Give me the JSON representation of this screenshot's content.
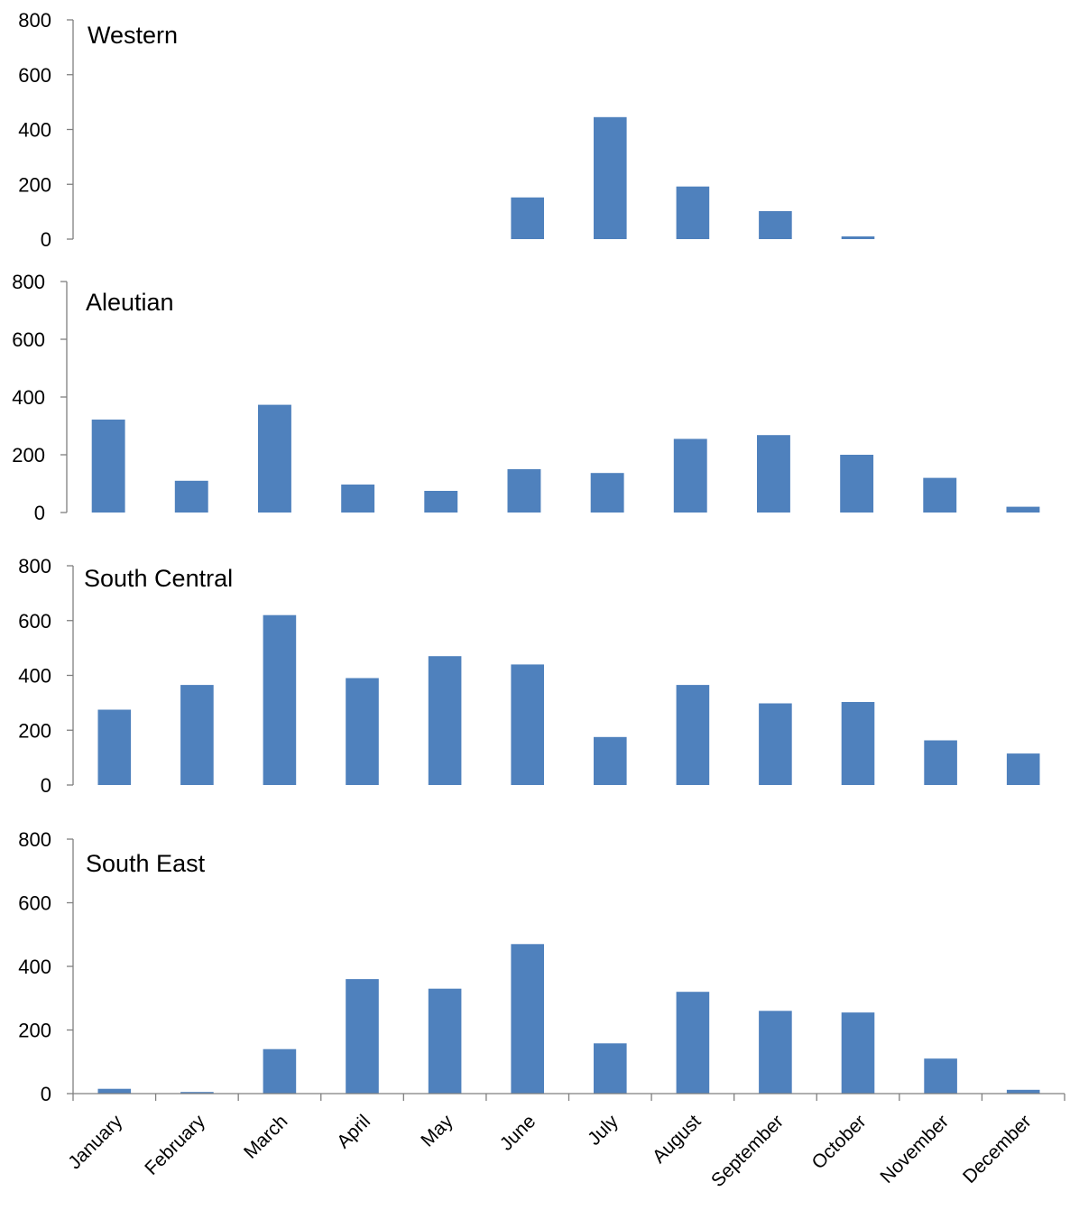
{
  "chart_data": {
    "type": "bar",
    "layout": "small-multiples-vertical",
    "shared_x_axis": true,
    "grid": false,
    "legend": "none",
    "bar_color": "#4f81bd",
    "categories": [
      "January",
      "February",
      "March",
      "April",
      "May",
      "June",
      "July",
      "August",
      "September",
      "October",
      "November",
      "December"
    ],
    "ylim": [
      0,
      800
    ],
    "yticks": [
      0,
      200,
      400,
      600,
      800
    ],
    "panels": [
      {
        "title": "Western",
        "values": [
          0,
          0,
          0,
          0,
          0,
          152,
          445,
          192,
          102,
          10,
          0,
          0
        ]
      },
      {
        "title": "Aleutian",
        "values": [
          322,
          110,
          373,
          97,
          75,
          150,
          137,
          255,
          268,
          200,
          120,
          20
        ]
      },
      {
        "title": "South Central",
        "values": [
          275,
          365,
          620,
          390,
          470,
          440,
          175,
          365,
          298,
          303,
          163,
          115
        ]
      },
      {
        "title": "South East",
        "values": [
          15,
          5,
          140,
          360,
          330,
          470,
          158,
          320,
          260,
          255,
          110,
          12
        ]
      }
    ]
  }
}
